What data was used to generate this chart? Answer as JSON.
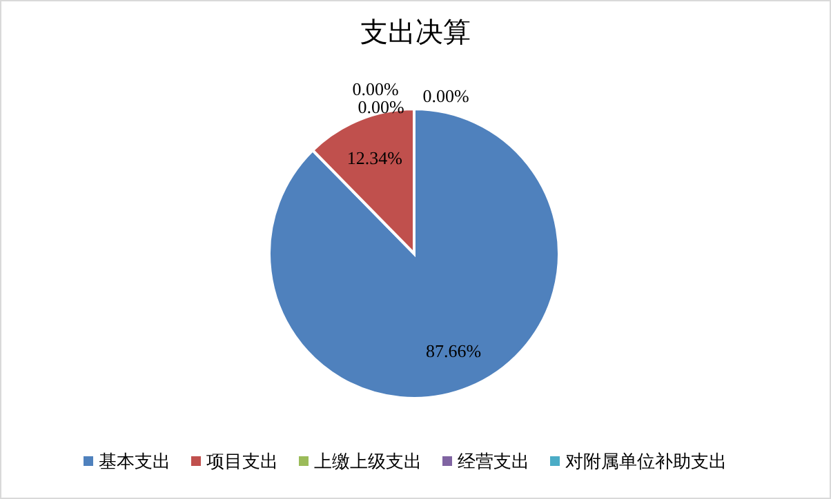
{
  "chart_data": {
    "type": "pie",
    "title": "支出决算",
    "categories": [
      "基本支出",
      "项目支出",
      "上缴上级支出",
      "经营支出",
      "对附属单位补助支出"
    ],
    "values": [
      87.66,
      12.34,
      0,
      0,
      0
    ],
    "colors": [
      "#4f81bd",
      "#c0504d",
      "#9bbb59",
      "#8064a2",
      "#4bacc6"
    ],
    "value_labels": [
      "87.66%",
      "12.34%",
      "0.00%",
      "0.00%",
      "0.00%"
    ],
    "legend": "bottom"
  }
}
